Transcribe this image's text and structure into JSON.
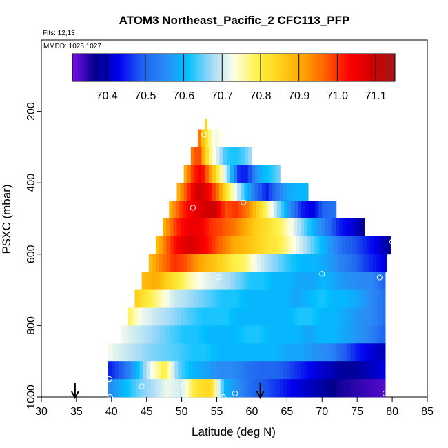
{
  "chart_data": {
    "type": "heatmap",
    "title": "ATOM3 Northeast_Pacific_2 CFC113_PFP",
    "flights_label": "Flts: 12,13",
    "mmdd_label": "MMDD: 1025,1027",
    "xlabel": "Latitude (deg N)",
    "ylabel": "PSXC (mbar)",
    "xlim": [
      30,
      85
    ],
    "ylim": [
      1000,
      0
    ],
    "x_ticks": [
      30,
      35,
      40,
      45,
      50,
      55,
      60,
      65,
      70,
      75,
      80,
      85
    ],
    "y_ticks": [
      200,
      400,
      600,
      800,
      1000
    ],
    "colorbar": {
      "range": [
        70.31,
        71.15
      ],
      "tick_values": [
        70.4,
        70.5,
        70.6,
        70.7,
        70.8,
        70.9,
        71.0,
        71.1
      ],
      "tick_labels": [
        "70.4",
        "70.5",
        "70.6",
        "70.7",
        "70.8",
        "70.9",
        "71.0",
        "71.1"
      ],
      "colors": [
        "#7a10e8",
        "#00008b",
        "#0000ee",
        "#1e5ff0",
        "#2a8af5",
        "#00c0ff",
        "#9cd8f8",
        "#ffffe8",
        "#fff24a",
        "#ffd21a",
        "#ffa500",
        "#ff6000",
        "#ff0000",
        "#d00000",
        "#a01818"
      ]
    },
    "profile_rows": [
      {
        "p_top": 220,
        "p_bot": 250,
        "lat_start": 53.3,
        "lat_end": 53.6,
        "values": [
          70.85
        ]
      },
      {
        "p_top": 250,
        "p_bot": 300,
        "lat_start": 52.3,
        "lat_end": 55.7,
        "values": [
          70.95,
          70.86,
          70.8,
          70.74,
          70.72,
          70.73
        ]
      },
      {
        "p_top": 300,
        "p_bot": 350,
        "lat_start": 51.3,
        "lat_end": 60.0,
        "values": [
          70.95,
          71.0,
          70.85,
          70.75,
          70.7,
          70.64,
          70.62,
          70.62,
          70.64,
          70.67
        ]
      },
      {
        "p_top": 350,
        "p_bot": 400,
        "lat_start": 50.3,
        "lat_end": 64.0,
        "values": [
          70.9,
          71.0,
          71.05,
          70.95,
          70.82,
          70.72,
          70.6,
          70.45,
          70.45,
          70.55,
          70.6,
          70.62,
          70.65
        ]
      },
      {
        "p_top": 400,
        "p_bot": 450,
        "lat_start": 49.3,
        "lat_end": 68.0,
        "values": [
          70.9,
          71.0,
          71.1,
          71.05,
          70.95,
          70.8,
          70.7,
          70.6,
          70.5,
          70.45,
          70.52,
          70.58,
          70.6,
          70.6
        ]
      },
      {
        "p_top": 450,
        "p_bot": 500,
        "lat_start": 48.2,
        "lat_end": 72.0,
        "values": [
          70.9,
          71.0,
          71.05,
          71.08,
          71.1,
          70.98,
          71.0,
          70.95,
          70.85,
          70.75,
          70.65,
          70.55,
          70.45,
          70.42,
          70.5,
          70.52
        ]
      },
      {
        "p_top": 500,
        "p_bot": 550,
        "lat_start": 47.3,
        "lat_end": 76.0,
        "values": [
          70.9,
          71.0,
          71.05,
          71.05,
          71.0,
          70.98,
          70.95,
          70.9,
          70.85,
          70.82,
          70.78,
          70.72,
          70.65,
          70.58,
          70.52,
          70.45,
          70.42,
          70.38
        ]
      },
      {
        "p_top": 550,
        "p_bot": 600,
        "lat_start": 46.3,
        "lat_end": 79.8,
        "values": [
          70.88,
          70.98,
          71.05,
          71.08,
          71.05,
          71.0,
          70.95,
          70.9,
          70.88,
          70.85,
          70.82,
          70.8,
          70.75,
          70.7,
          70.65,
          70.6,
          70.55,
          70.5,
          70.48,
          70.45,
          70.42,
          70.38
        ]
      },
      {
        "p_top": 600,
        "p_bot": 650,
        "lat_start": 45.3,
        "lat_end": 79.2,
        "values": [
          70.88,
          70.95,
          71.0,
          70.98,
          70.92,
          70.88,
          70.85,
          70.8,
          70.78,
          70.72,
          70.68,
          70.65,
          70.62,
          70.6,
          70.6,
          70.58,
          70.55,
          70.52,
          70.48,
          70.45,
          70.42
        ]
      },
      {
        "p_top": 650,
        "p_bot": 700,
        "lat_start": 44.3,
        "lat_end": 79.0,
        "values": [
          70.88,
          70.9,
          70.85,
          70.8,
          70.75,
          70.72,
          70.7,
          70.68,
          70.65,
          70.62,
          70.62,
          70.6,
          70.6,
          70.58,
          70.58,
          70.6,
          70.58,
          70.56,
          70.55,
          70.55,
          70.5
        ]
      },
      {
        "p_top": 700,
        "p_bot": 750,
        "lat_start": 43.3,
        "lat_end": 79.0,
        "values": [
          70.85,
          70.8,
          70.75,
          70.7,
          70.68,
          70.66,
          70.64,
          70.62,
          70.62,
          70.6,
          70.6,
          70.6,
          70.6,
          70.58,
          70.6,
          70.62,
          70.6,
          70.6,
          70.58,
          70.55,
          70.52
        ]
      },
      {
        "p_top": 750,
        "p_bot": 800,
        "lat_start": 42.3,
        "lat_end": 79.0,
        "values": [
          70.78,
          70.72,
          70.7,
          70.68,
          70.66,
          70.64,
          70.62,
          70.62,
          70.62,
          70.6,
          70.6,
          70.6,
          70.6,
          70.6,
          70.62,
          70.62,
          70.6,
          70.6,
          70.58,
          70.56,
          70.55,
          70.52
        ]
      },
      {
        "p_top": 800,
        "p_bot": 850,
        "lat_start": 41.3,
        "lat_end": 79.0,
        "values": [
          70.72,
          70.7,
          70.68,
          70.66,
          70.64,
          70.62,
          70.62,
          70.6,
          70.6,
          70.6,
          70.62,
          70.62,
          70.6,
          70.6,
          70.6,
          70.58,
          70.6,
          70.6,
          70.58,
          70.56,
          70.54,
          70.5
        ]
      },
      {
        "p_top": 850,
        "p_bot": 900,
        "lat_start": 39.5,
        "lat_end": 79.0,
        "values": [
          70.72,
          70.7,
          70.68,
          70.66,
          70.65,
          70.64,
          70.62,
          70.62,
          70.6,
          70.6,
          70.6,
          70.6,
          70.6,
          70.58,
          70.58,
          70.56,
          70.55,
          70.5,
          70.45,
          70.42,
          70.4
        ]
      },
      {
        "p_top": 900,
        "p_bot": 950,
        "lat_start": 39.5,
        "lat_end": 79.0,
        "values": [
          70.45,
          70.5,
          70.6,
          70.72,
          70.8,
          70.65,
          70.6,
          70.58,
          70.55,
          70.55,
          70.52,
          70.5,
          70.5,
          70.48,
          70.45,
          70.42,
          70.4,
          70.38,
          70.38,
          70.4,
          70.42
        ]
      },
      {
        "p_top": 950,
        "p_bot": 1000,
        "lat_start": 39.5,
        "lat_end": 79.0,
        "values": [
          70.55,
          70.6,
          70.65,
          70.68,
          70.72,
          70.7,
          70.82,
          70.84,
          70.6,
          70.55,
          70.5,
          70.48,
          70.45,
          70.42,
          70.4,
          70.38,
          70.36,
          70.35,
          70.34,
          70.33
        ]
      }
    ],
    "sample_points": [
      {
        "lat": 53.2,
        "p": 265
      },
      {
        "lat": 51.6,
        "p": 470
      },
      {
        "lat": 58.8,
        "p": 455
      },
      {
        "lat": 80.0,
        "p": 565
      },
      {
        "lat": 55.2,
        "p": 665
      },
      {
        "lat": 70.0,
        "p": 655
      },
      {
        "lat": 78.2,
        "p": 665
      },
      {
        "lat": 39.7,
        "p": 950
      },
      {
        "lat": 44.3,
        "p": 970
      },
      {
        "lat": 50.3,
        "p": 968
      },
      {
        "lat": 57.6,
        "p": 990
      },
      {
        "lat": 55.9,
        "p": 1000
      },
      {
        "lat": 39.8,
        "p": 1000
      },
      {
        "lat": 50.5,
        "p": 1002
      },
      {
        "lat": 79.0,
        "p": 990
      },
      {
        "lat": 39.8,
        "p": 880
      }
    ],
    "arrows": [
      {
        "lat": 34.8
      },
      {
        "lat": 61.2
      }
    ]
  }
}
